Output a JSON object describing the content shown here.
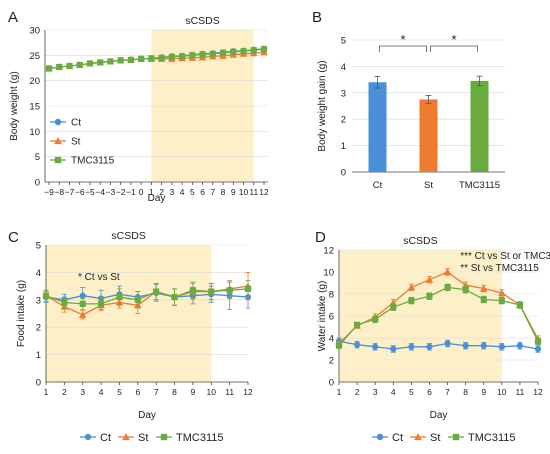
{
  "colors": {
    "ct": "#4a90d9",
    "st": "#ee7b30",
    "tmc": "#6aab40",
    "shade": "#fdf0c9"
  },
  "chart_data": [
    {
      "panel_label": "A",
      "type": "line",
      "shaded_label": "sCSDS",
      "shade_x": [
        1,
        11
      ],
      "xlabel": "Day",
      "ylabel": "Body weight (g)",
      "ylim": [
        0,
        30
      ],
      "yticks": [
        0,
        5,
        10,
        15,
        20,
        25,
        30
      ],
      "x": [
        -9,
        -8,
        -7,
        -6,
        -5,
        -4,
        -3,
        -2,
        -1,
        0,
        1,
        2,
        3,
        4,
        5,
        6,
        7,
        8,
        9,
        10,
        11,
        12
      ],
      "xtick_labels": [
        "−9",
        "−8",
        "−7",
        "−6",
        "−5",
        "−4",
        "−3",
        "−2",
        "−1",
        "0",
        "1",
        "2",
        "3",
        "4",
        "5",
        "6",
        "7",
        "8",
        "9",
        "10",
        "11",
        "12"
      ],
      "legend": "left",
      "series": [
        {
          "name": "Ct",
          "color_key": "ct",
          "marker": "circle",
          "values": [
            22.4,
            22.7,
            22.9,
            23.1,
            23.4,
            23.6,
            23.8,
            24.0,
            24.1,
            24.3,
            24.4,
            24.6,
            24.8,
            24.9,
            25.1,
            25.3,
            25.4,
            25.6,
            25.8,
            25.9,
            26.1,
            26.3
          ]
        },
        {
          "name": "St",
          "color_key": "st",
          "marker": "triangle",
          "values": [
            22.4,
            22.7,
            22.9,
            23.1,
            23.4,
            23.6,
            23.8,
            24.0,
            24.1,
            24.3,
            24.3,
            24.3,
            24.3,
            24.4,
            24.5,
            24.6,
            24.8,
            24.9,
            25.1,
            25.3,
            25.4,
            25.6
          ]
        },
        {
          "name": "TMC3115",
          "color_key": "tmc",
          "marker": "square",
          "values": [
            22.4,
            22.7,
            22.9,
            23.1,
            23.4,
            23.6,
            23.8,
            24.0,
            24.1,
            24.3,
            24.4,
            24.5,
            24.7,
            24.8,
            25.0,
            25.2,
            25.3,
            25.5,
            25.7,
            25.8,
            26.0,
            26.2
          ]
        }
      ]
    },
    {
      "panel_label": "B",
      "type": "bar",
      "ylabel": "Body weight gain (g)",
      "ylim": [
        0,
        5
      ],
      "yticks": [
        0,
        1,
        2,
        3,
        4,
        5
      ],
      "categories": [
        "Ct",
        "St",
        "TMC3115"
      ],
      "values": [
        3.4,
        2.75,
        3.45
      ],
      "errors": [
        0.22,
        0.15,
        0.18
      ],
      "color_keys": [
        "ct",
        "st",
        "tmc"
      ],
      "significance": [
        {
          "from": 0,
          "to": 1,
          "label": "*"
        },
        {
          "from": 1,
          "to": 2,
          "label": "*"
        }
      ]
    },
    {
      "panel_label": "C",
      "type": "line",
      "shaded_label": "sCSDS",
      "shade_x": [
        1,
        10
      ],
      "annotations": [
        "* Ct vs St"
      ],
      "xlabel": "Day",
      "ylabel": "Food intake (g)",
      "ylim": [
        0,
        5
      ],
      "yticks": [
        0,
        1,
        2,
        3,
        4,
        5
      ],
      "x": [
        1,
        2,
        3,
        4,
        5,
        6,
        7,
        8,
        9,
        10,
        11,
        12
      ],
      "xtick_labels": [
        "1",
        "2",
        "3",
        "4",
        "5",
        "6",
        "7",
        "8",
        "9",
        "10",
        "11",
        "12"
      ],
      "legend": "bottom",
      "series": [
        {
          "name": "Ct",
          "color_key": "ct",
          "marker": "circle",
          "values": [
            3.1,
            3.0,
            3.15,
            3.05,
            3.2,
            3.1,
            3.25,
            3.1,
            3.15,
            3.2,
            3.15,
            3.1
          ],
          "errors": [
            0.2,
            0.2,
            0.3,
            0.3,
            0.3,
            0.2,
            0.3,
            0.3,
            0.3,
            0.3,
            0.5,
            0.4
          ]
        },
        {
          "name": "St",
          "color_key": "st",
          "marker": "triangle",
          "values": [
            3.15,
            2.75,
            2.45,
            2.8,
            2.9,
            2.8,
            3.3,
            3.1,
            3.3,
            3.3,
            3.4,
            3.5
          ],
          "errors": [
            0.2,
            0.2,
            0.15,
            0.2,
            0.2,
            0.3,
            0.3,
            0.3,
            0.3,
            0.3,
            0.3,
            0.5
          ]
        },
        {
          "name": "TMC3115",
          "color_key": "tmc",
          "marker": "square",
          "values": [
            3.15,
            2.9,
            2.85,
            2.85,
            3.1,
            3.0,
            3.3,
            3.1,
            3.35,
            3.3,
            3.35,
            3.4
          ],
          "errors": [
            0.2,
            0.2,
            0.2,
            0.2,
            0.3,
            0.3,
            0.3,
            0.3,
            0.3,
            0.3,
            0.3,
            0.3
          ]
        }
      ]
    },
    {
      "panel_label": "D",
      "type": "line",
      "shaded_label": "sCSDS",
      "shade_x": [
        1,
        10
      ],
      "annotations": [
        "*** Ct vs St or TMC3115",
        "** St vs TMC3115"
      ],
      "xlabel": "Day",
      "ylabel": "Water intake (g)",
      "ylim": [
        0,
        12
      ],
      "yticks": [
        0,
        2,
        4,
        6,
        8,
        10,
        12
      ],
      "x": [
        1,
        2,
        3,
        4,
        5,
        6,
        7,
        8,
        9,
        10,
        11,
        12
      ],
      "xtick_labels": [
        "1",
        "2",
        "3",
        "4",
        "5",
        "6",
        "7",
        "8",
        "9",
        "10",
        "11",
        "12"
      ],
      "legend": "bottom",
      "series": [
        {
          "name": "Ct",
          "color_key": "ct",
          "marker": "circle",
          "values": [
            3.7,
            3.4,
            3.2,
            3.0,
            3.2,
            3.2,
            3.5,
            3.3,
            3.3,
            3.2,
            3.3,
            3.0
          ],
          "errors": [
            0.3,
            0.3,
            0.3,
            0.3,
            0.3,
            0.3,
            0.3,
            0.3,
            0.3,
            0.3,
            0.3,
            0.3
          ]
        },
        {
          "name": "St",
          "color_key": "st",
          "marker": "triangle",
          "values": [
            3.5,
            5.1,
            5.9,
            7.2,
            8.6,
            9.3,
            10.0,
            8.8,
            8.5,
            8.1,
            7.0,
            3.9
          ],
          "errors": [
            0.2,
            0.2,
            0.3,
            0.3,
            0.3,
            0.3,
            0.3,
            0.3,
            0.3,
            0.3,
            0.3,
            0.3
          ]
        },
        {
          "name": "TMC3115",
          "color_key": "tmc",
          "marker": "square",
          "values": [
            3.3,
            5.2,
            5.7,
            6.8,
            7.4,
            7.8,
            8.6,
            8.4,
            7.5,
            7.4,
            7.0,
            3.7
          ],
          "errors": [
            0.2,
            0.2,
            0.3,
            0.3,
            0.3,
            0.3,
            0.3,
            0.3,
            0.3,
            0.3,
            0.3,
            0.3
          ]
        }
      ]
    }
  ]
}
